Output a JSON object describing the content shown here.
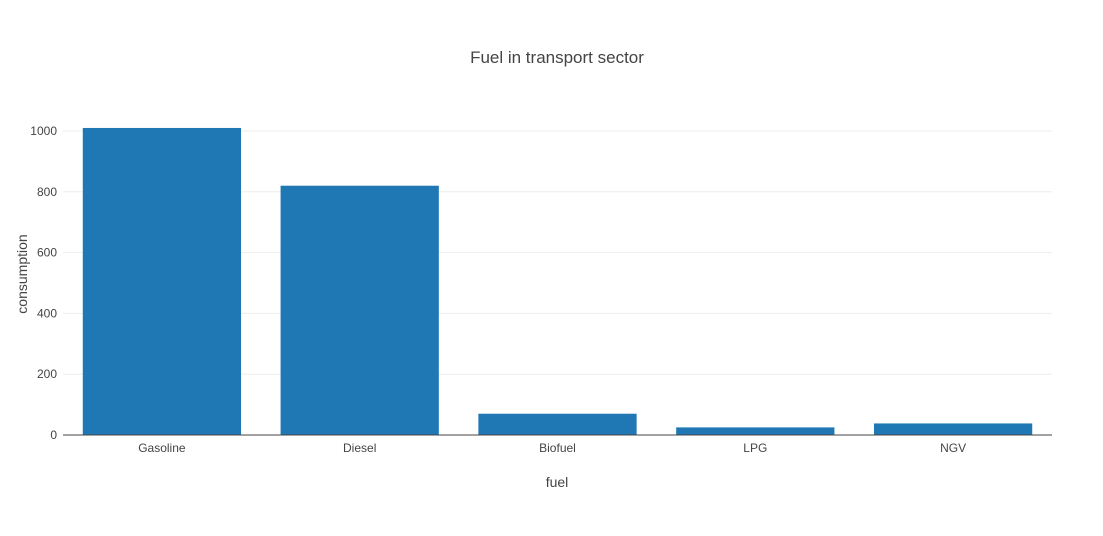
{
  "chart_data": {
    "type": "bar",
    "title": "Fuel in transport sector",
    "xlabel": "fuel",
    "ylabel": "consumption",
    "categories": [
      "Gasoline",
      "Diesel",
      "Biofuel",
      "LPG",
      "NGV"
    ],
    "values": [
      1010,
      820,
      70,
      25,
      38
    ],
    "ylim": [
      0,
      1000
    ],
    "yticks": [
      0,
      200,
      400,
      600,
      800,
      1000
    ],
    "grid": true,
    "colors": {
      "bar": "#1f77b4",
      "grid": "#eeeeee",
      "axis": "#444444",
      "text": "#444444"
    }
  }
}
